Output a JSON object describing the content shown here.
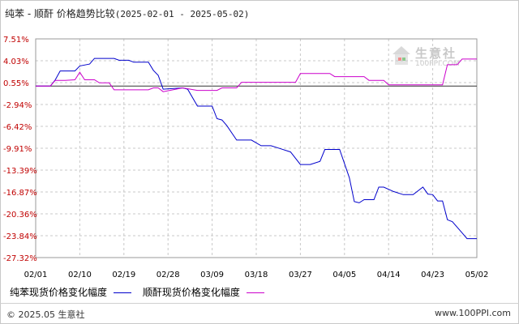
{
  "title": {
    "main": "纯苯 - 顺酐 价格趋势比较",
    "range": "(2025-02-01 - 2025-05-02)"
  },
  "watermark": {
    "name": "生意社",
    "url": "100PPI.COM"
  },
  "footer": {
    "left": "© 2025.05 生意社",
    "right": "www.100PPI.com"
  },
  "legend": [
    {
      "label": "纯苯现货价格变化幅度",
      "color": "#0000cc"
    },
    {
      "label": "顺酐现货价格变化幅度",
      "color": "#cc00cc"
    }
  ],
  "colors": {
    "tick_label": "#c00000",
    "grid": "#c8c8c8",
    "zero_line": "#333333"
  },
  "chart_data": {
    "type": "line",
    "ylim": [
      -27.32,
      7.51
    ],
    "y_ticks": [
      "7.51%",
      "4.03%",
      "0.55%",
      "-2.94%",
      "-6.42%",
      "-9.91%",
      "-13.39%",
      "-16.87%",
      "-20.36%",
      "-23.84%",
      "-27.32%"
    ],
    "x_ticks": [
      "02/01",
      "02/10",
      "02/19",
      "02/28",
      "03/09",
      "03/18",
      "03/27",
      "04/05",
      "04/14",
      "04/23",
      "05/02"
    ],
    "x_range": [
      "2025-02-01",
      "2025-05-02"
    ],
    "grid": true,
    "legend_position": "bottom",
    "series": [
      {
        "name": "纯苯现货价格变化幅度",
        "color": "#0000cc",
        "points": [
          [
            "2025-02-01",
            0.0
          ],
          [
            "2025-02-04",
            0.0
          ],
          [
            "2025-02-05",
            1.0
          ],
          [
            "2025-02-06",
            2.4
          ],
          [
            "2025-02-09",
            2.4
          ],
          [
            "2025-02-10",
            3.2
          ],
          [
            "2025-02-12",
            3.5
          ],
          [
            "2025-02-13",
            4.4
          ],
          [
            "2025-02-17",
            4.4
          ],
          [
            "2025-02-18",
            4.1
          ],
          [
            "2025-02-20",
            4.1
          ],
          [
            "2025-02-21",
            3.8
          ],
          [
            "2025-02-24",
            3.8
          ],
          [
            "2025-02-25",
            2.5
          ],
          [
            "2025-02-26",
            1.7
          ],
          [
            "2025-02-27",
            -0.5
          ],
          [
            "2025-03-03",
            -0.3
          ],
          [
            "2025-03-04",
            -0.5
          ],
          [
            "2025-03-06",
            -3.2
          ],
          [
            "2025-03-09",
            -3.2
          ],
          [
            "2025-03-10",
            -5.2
          ],
          [
            "2025-03-11",
            -5.4
          ],
          [
            "2025-03-12",
            -6.3
          ],
          [
            "2025-03-14",
            -8.6
          ],
          [
            "2025-03-17",
            -8.6
          ],
          [
            "2025-03-19",
            -9.5
          ],
          [
            "2025-03-21",
            -9.5
          ],
          [
            "2025-03-23",
            -10.0
          ],
          [
            "2025-03-25",
            -10.5
          ],
          [
            "2025-03-27",
            -12.5
          ],
          [
            "2025-03-29",
            -12.5
          ],
          [
            "2025-03-31",
            -12.0
          ],
          [
            "2025-04-01",
            -10.1
          ],
          [
            "2025-04-04",
            -10.1
          ],
          [
            "2025-04-06",
            -14.6
          ],
          [
            "2025-04-07",
            -18.4
          ],
          [
            "2025-04-08",
            -18.6
          ],
          [
            "2025-04-09",
            -18.1
          ],
          [
            "2025-04-11",
            -18.1
          ],
          [
            "2025-04-12",
            -16.1
          ],
          [
            "2025-04-13",
            -16.1
          ],
          [
            "2025-04-15",
            -16.8
          ],
          [
            "2025-04-17",
            -17.3
          ],
          [
            "2025-04-19",
            -17.3
          ],
          [
            "2025-04-21",
            -16.1
          ],
          [
            "2025-04-22",
            -17.2
          ],
          [
            "2025-04-23",
            -17.3
          ],
          [
            "2025-04-24",
            -18.3
          ],
          [
            "2025-04-25",
            -18.3
          ],
          [
            "2025-04-26",
            -21.3
          ],
          [
            "2025-04-27",
            -21.6
          ],
          [
            "2025-04-29",
            -23.4
          ],
          [
            "2025-04-30",
            -24.3
          ],
          [
            "2025-05-02",
            -24.3
          ]
        ]
      },
      {
        "name": "顺酐现货价格变化幅度",
        "color": "#cc00cc",
        "points": [
          [
            "2025-02-01",
            0.0
          ],
          [
            "2025-02-04",
            0.0
          ],
          [
            "2025-02-05",
            0.9
          ],
          [
            "2025-02-07",
            0.9
          ],
          [
            "2025-02-09",
            1.0
          ],
          [
            "2025-02-10",
            2.2
          ],
          [
            "2025-02-11",
            1.0
          ],
          [
            "2025-02-13",
            1.0
          ],
          [
            "2025-02-14",
            0.5
          ],
          [
            "2025-02-16",
            0.5
          ],
          [
            "2025-02-17",
            -0.6
          ],
          [
            "2025-02-24",
            -0.6
          ],
          [
            "2025-02-25",
            -0.3
          ],
          [
            "2025-02-26",
            -0.3
          ],
          [
            "2025-02-27",
            -0.9
          ],
          [
            "2025-03-03",
            -0.3
          ],
          [
            "2025-03-06",
            -0.7
          ],
          [
            "2025-03-10",
            -0.7
          ],
          [
            "2025-03-11",
            -0.3
          ],
          [
            "2025-03-14",
            -0.3
          ],
          [
            "2025-03-15",
            0.6
          ],
          [
            "2025-03-26",
            0.6
          ],
          [
            "2025-03-27",
            2.0
          ],
          [
            "2025-04-02",
            2.0
          ],
          [
            "2025-04-03",
            1.5
          ],
          [
            "2025-04-09",
            1.5
          ],
          [
            "2025-04-10",
            0.9
          ],
          [
            "2025-04-13",
            0.9
          ],
          [
            "2025-04-14",
            0.2
          ],
          [
            "2025-04-25",
            0.2
          ],
          [
            "2025-04-26",
            3.4
          ],
          [
            "2025-04-28",
            3.4
          ],
          [
            "2025-04-29",
            4.3
          ],
          [
            "2025-05-02",
            4.3
          ]
        ]
      }
    ]
  }
}
